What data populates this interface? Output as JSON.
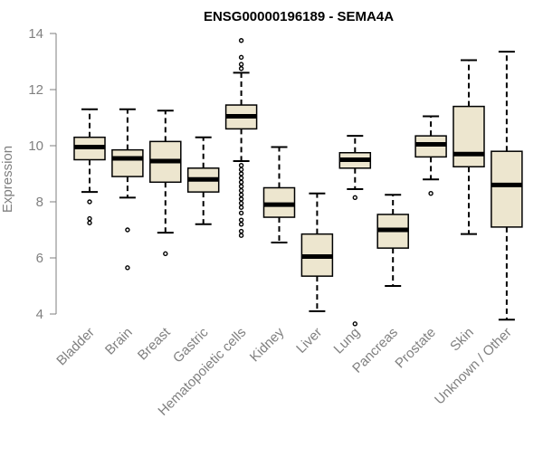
{
  "chart_data": {
    "type": "boxplot",
    "title": "ENSG00000196189 - SEMA4A",
    "ylabel": "Expression",
    "xlabel": "",
    "ylim": [
      3.6,
      14.1
    ],
    "yticks": [
      4,
      6,
      8,
      10,
      12,
      14
    ],
    "grid": false,
    "legend": "none",
    "colors": {
      "box_fill": "#ede6cf",
      "stroke": "#000000",
      "axis": "#7f7f7f",
      "label": "#808080"
    },
    "categories": [
      {
        "name": "Bladder",
        "whisker_low": 8.35,
        "q1": 9.5,
        "median": 9.95,
        "q3": 10.3,
        "whisker_high": 11.3,
        "outliers": [
          8.0,
          7.4,
          7.25
        ]
      },
      {
        "name": "Brain",
        "whisker_low": 8.15,
        "q1": 8.9,
        "median": 9.55,
        "q3": 9.85,
        "whisker_high": 11.3,
        "outliers": [
          7.0,
          5.65
        ]
      },
      {
        "name": "Breast",
        "whisker_low": 6.9,
        "q1": 8.7,
        "median": 9.45,
        "q3": 10.15,
        "whisker_high": 11.25,
        "outliers": [
          6.15
        ]
      },
      {
        "name": "Gastric",
        "whisker_low": 7.2,
        "q1": 8.35,
        "median": 8.8,
        "q3": 9.2,
        "whisker_high": 10.3,
        "outliers": []
      },
      {
        "name": "Hematopoietic cells",
        "whisker_low": 9.45,
        "q1": 10.6,
        "median": 11.05,
        "q3": 11.45,
        "whisker_high": 12.6,
        "outliers": [
          13.75,
          13.15,
          12.9,
          12.75,
          9.3,
          9.15,
          9.0,
          8.85,
          8.7,
          8.55,
          8.4,
          8.25,
          8.1,
          7.95,
          7.8,
          7.6,
          7.35,
          7.2,
          6.95,
          6.8
        ]
      },
      {
        "name": "Kidney",
        "whisker_low": 6.55,
        "q1": 7.45,
        "median": 7.9,
        "q3": 8.5,
        "whisker_high": 9.95,
        "outliers": []
      },
      {
        "name": "Liver",
        "whisker_low": 4.1,
        "q1": 5.35,
        "median": 6.05,
        "q3": 6.85,
        "whisker_high": 8.3,
        "outliers": []
      },
      {
        "name": "Lung",
        "whisker_low": 8.45,
        "q1": 9.2,
        "median": 9.5,
        "q3": 9.75,
        "whisker_high": 10.35,
        "outliers": [
          8.15,
          3.65
        ]
      },
      {
        "name": "Pancreas",
        "whisker_low": 5.0,
        "q1": 6.35,
        "median": 7.0,
        "q3": 7.55,
        "whisker_high": 8.25,
        "outliers": []
      },
      {
        "name": "Prostate",
        "whisker_low": 8.8,
        "q1": 9.6,
        "median": 10.05,
        "q3": 10.35,
        "whisker_high": 11.05,
        "outliers": [
          8.3
        ]
      },
      {
        "name": "Skin",
        "whisker_low": 6.85,
        "q1": 9.25,
        "median": 9.7,
        "q3": 11.4,
        "whisker_high": 13.05,
        "outliers": []
      },
      {
        "name": "Unknown / Other",
        "whisker_low": 3.8,
        "q1": 7.1,
        "median": 8.6,
        "q3": 9.8,
        "whisker_high": 13.35,
        "outliers": []
      }
    ]
  }
}
